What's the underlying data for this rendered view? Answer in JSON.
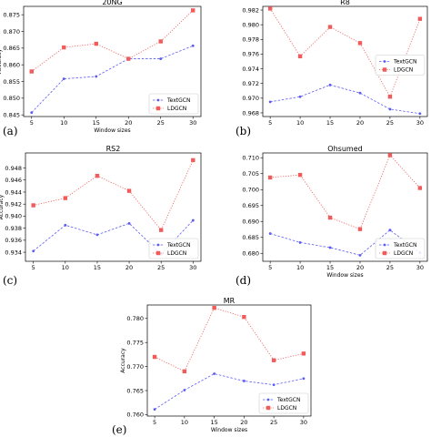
{
  "colors": {
    "textgcn": "#5b5bf0",
    "ldgcn": "#f05b5b"
  },
  "chart_data": [
    {
      "type": "line",
      "panel_label": "(a)",
      "title": "20NG",
      "xlabel": "Window sizes",
      "ylabel": "Accuracy",
      "x": [
        5,
        10,
        15,
        20,
        25,
        30
      ],
      "xticks": [
        "5",
        "10",
        "15",
        "20",
        "25",
        "30"
      ],
      "ylim": [
        0.8445,
        0.8775
      ],
      "yticks": [
        "0.845",
        "0.850",
        "0.855",
        "0.860",
        "0.865",
        "0.870",
        "0.875"
      ],
      "legend_position": "lower right",
      "series": [
        {
          "name": "TextGCN",
          "values": [
            0.8457,
            0.8558,
            0.8565,
            0.8618,
            0.8618,
            0.8657
          ]
        },
        {
          "name": "LDGCN",
          "values": [
            0.858,
            0.8652,
            0.8663,
            0.8618,
            0.867,
            0.8763
          ]
        }
      ]
    },
    {
      "type": "line",
      "panel_label": "(b)",
      "title": "R8",
      "xlabel": "",
      "ylabel": "",
      "x": [
        5,
        10,
        15,
        20,
        25,
        30
      ],
      "xticks": [
        "5",
        "10",
        "15",
        "20",
        "25",
        "30"
      ],
      "ylim": [
        0.9675,
        0.9825
      ],
      "yticks": [
        "0.968",
        "0.970",
        "0.972",
        "0.974",
        "0.976",
        "0.978",
        "0.980",
        "0.982"
      ],
      "legend_position": "center right",
      "series": [
        {
          "name": "TextGCN",
          "values": [
            0.9695,
            0.9702,
            0.9718,
            0.9707,
            0.9685,
            0.9679
          ]
        },
        {
          "name": "LDGCN",
          "values": [
            0.9822,
            0.9757,
            0.9797,
            0.9775,
            0.9702,
            0.9808
          ]
        }
      ]
    },
    {
      "type": "line",
      "panel_label": "(c)",
      "title": "RS2",
      "xlabel": "",
      "ylabel": "Accuracy",
      "x": [
        5,
        10,
        15,
        20,
        25,
        30
      ],
      "xticks": [
        "5",
        "10",
        "15",
        "20",
        "25",
        "30"
      ],
      "ylim": [
        0.9325,
        0.9505
      ],
      "yticks": [
        "0.934",
        "0.936",
        "0.938",
        "0.940",
        "0.942",
        "0.944",
        "0.946",
        "0.948"
      ],
      "legend_position": "lower right",
      "series": [
        {
          "name": "TextGCN",
          "values": [
            0.9342,
            0.9385,
            0.9369,
            0.9388,
            0.9337,
            0.9393
          ]
        },
        {
          "name": "LDGCN",
          "values": [
            0.9418,
            0.943,
            0.9467,
            0.9442,
            0.9377,
            0.9493
          ]
        }
      ]
    },
    {
      "type": "line",
      "panel_label": "(d)",
      "title": "Ohsumed",
      "xlabel": "Window sizes",
      "ylabel": "",
      "x": [
        5,
        10,
        15,
        20,
        25,
        30
      ],
      "xticks": [
        "5",
        "10",
        "15",
        "20",
        "25",
        "30"
      ],
      "ylim": [
        0.6775,
        0.7115
      ],
      "yticks": [
        "0.680",
        "0.685",
        "0.690",
        "0.695",
        "0.700",
        "0.705",
        "0.710"
      ],
      "legend_position": "lower right",
      "series": [
        {
          "name": "TextGCN",
          "values": [
            0.6862,
            0.6834,
            0.6818,
            0.6794,
            0.6873,
            0.6802
          ]
        },
        {
          "name": "LDGCN",
          "values": [
            0.7038,
            0.7046,
            0.6912,
            0.6876,
            0.7108,
            0.7005
          ]
        }
      ]
    },
    {
      "type": "line",
      "panel_label": "(e)",
      "title": "MR",
      "xlabel": "Window sizes",
      "ylabel": "Accuracy",
      "x": [
        5,
        10,
        15,
        20,
        25,
        30
      ],
      "xticks": [
        "5",
        "10",
        "15",
        "20",
        "25",
        "30"
      ],
      "ylim": [
        0.7597,
        0.7828
      ],
      "yticks": [
        "0.760",
        "0.765",
        "0.770",
        "0.775",
        "0.780"
      ],
      "legend_position": "lower right",
      "series": [
        {
          "name": "TextGCN",
          "values": [
            0.7611,
            0.7651,
            0.7685,
            0.767,
            0.7662,
            0.7675
          ]
        },
        {
          "name": "LDGCN",
          "values": [
            0.772,
            0.769,
            0.7822,
            0.7803,
            0.7713,
            0.7727
          ]
        }
      ]
    }
  ]
}
